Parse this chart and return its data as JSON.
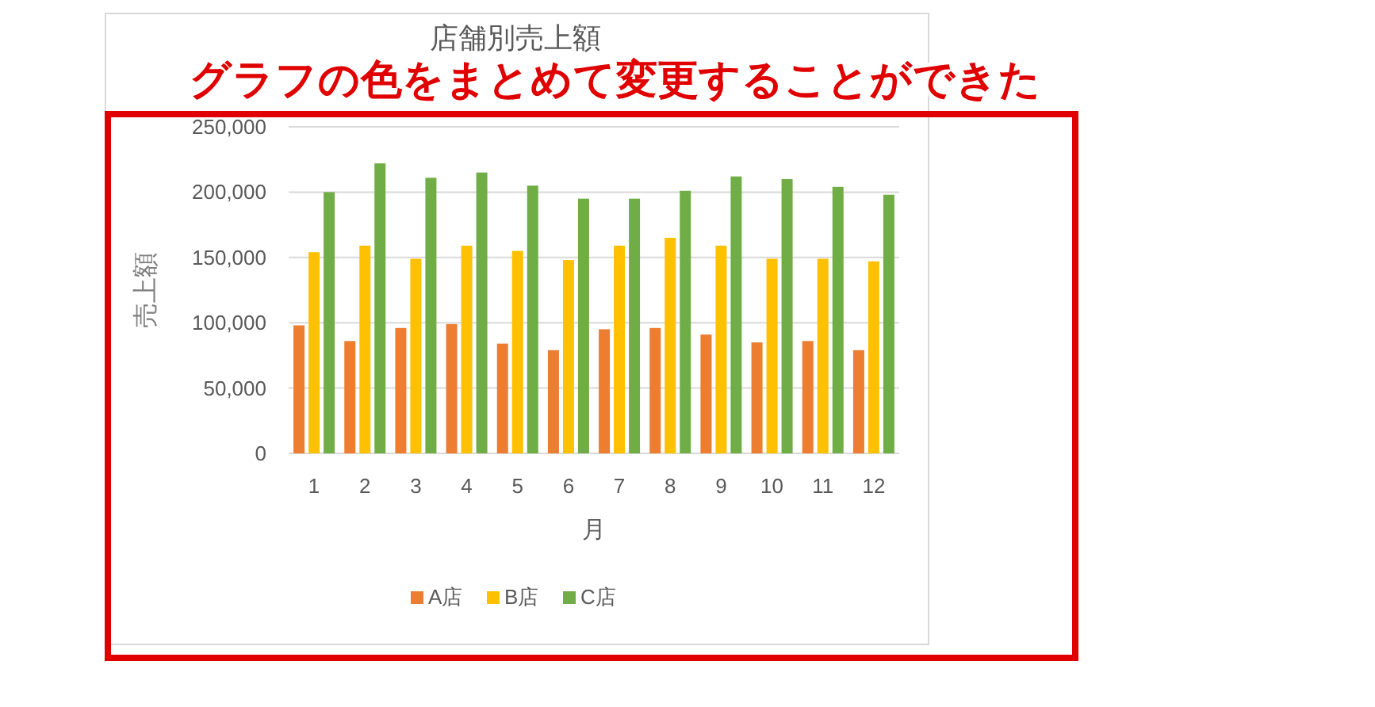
{
  "chart_data": {
    "type": "bar",
    "title": "店舗別売上額",
    "xlabel": "月",
    "ylabel": "売上額",
    "categories": [
      "1",
      "2",
      "3",
      "4",
      "5",
      "6",
      "7",
      "8",
      "9",
      "10",
      "11",
      "12"
    ],
    "series": [
      {
        "name": "A店",
        "color": "#ed7d31",
        "values": [
          98000,
          86000,
          96000,
          99000,
          84000,
          79000,
          95000,
          96000,
          91000,
          85000,
          86000,
          79000
        ]
      },
      {
        "name": "B店",
        "color": "#ffc000",
        "values": [
          154000,
          159000,
          149000,
          159000,
          155000,
          148000,
          159000,
          165000,
          159000,
          149000,
          149000,
          147000
        ]
      },
      {
        "name": "C店",
        "color": "#70ad47",
        "values": [
          200000,
          222000,
          211000,
          215000,
          205000,
          195000,
          195000,
          201000,
          212000,
          210000,
          204000,
          198000
        ]
      }
    ],
    "ylim": [
      0,
      250000
    ],
    "yticks": [
      0,
      {
        "value": 50000,
        "label": "50,000"
      },
      {
        "value": 100000,
        "label": "100,000"
      },
      {
        "value": 150000,
        "label": "150,000"
      },
      {
        "value": 200000,
        "label": "200,000"
      },
      {
        "value": 250000,
        "label": "250,000"
      }
    ],
    "grid": "y",
    "legend": "bottom",
    "annotations": [
      "グラフの色をまとめて変更することができた"
    ]
  }
}
